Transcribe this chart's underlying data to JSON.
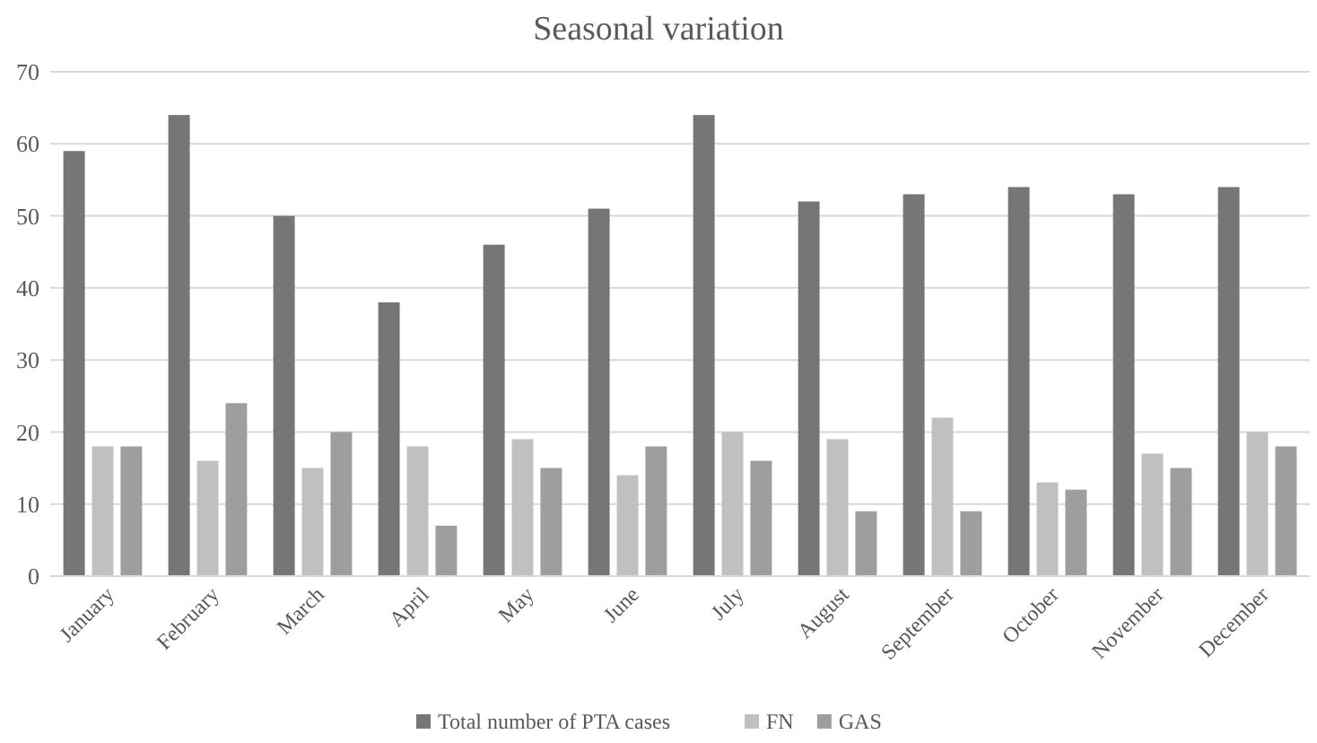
{
  "chart_data": {
    "type": "bar",
    "title": "Seasonal variation",
    "categories": [
      "January",
      "February",
      "March",
      "April",
      "May",
      "June",
      "July",
      "August",
      "September",
      "October",
      "November",
      "December"
    ],
    "series": [
      {
        "name": "Total number of PTA cases",
        "color": "#767676",
        "values": [
          59,
          64,
          50,
          38,
          46,
          51,
          64,
          52,
          53,
          54,
          53,
          54
        ]
      },
      {
        "name": "FN",
        "color": "#c0c0c0",
        "values": [
          18,
          16,
          15,
          18,
          19,
          14,
          20,
          19,
          22,
          13,
          17,
          20
        ]
      },
      {
        "name": "GAS",
        "color": "#9e9e9e",
        "values": [
          18,
          24,
          20,
          7,
          15,
          18,
          16,
          9,
          9,
          12,
          15,
          18
        ]
      }
    ],
    "ylim": [
      0,
      70
    ],
    "yticks": [
      0,
      10,
      20,
      30,
      40,
      50,
      60,
      70
    ],
    "grid": "y",
    "legend": "bottom"
  }
}
